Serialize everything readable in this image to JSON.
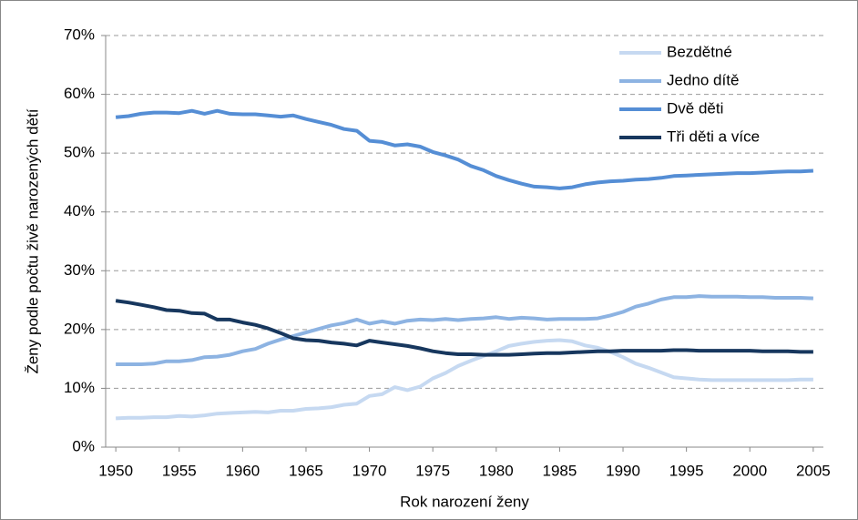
{
  "chart_data": {
    "type": "line",
    "x_label": "Rok narození ženy",
    "y_label": "Ženy podle počtu živě narozených dětí",
    "x": [
      1950,
      1951,
      1952,
      1953,
      1954,
      1955,
      1956,
      1957,
      1958,
      1959,
      1960,
      1961,
      1962,
      1963,
      1964,
      1965,
      1966,
      1967,
      1968,
      1969,
      1970,
      1971,
      1972,
      1973,
      1974,
      1975,
      1976,
      1977,
      1978,
      1979,
      1980,
      1981,
      1982,
      1983,
      1984,
      1985,
      1986,
      1987,
      1988,
      1989,
      1990,
      1991,
      1992,
      1993,
      1994,
      1995,
      1996,
      1997,
      1998,
      1999,
      2000,
      2001,
      2002,
      2003,
      2004,
      2005
    ],
    "series": [
      {
        "name": "Bezdětné",
        "color": "#c6d9f1",
        "values": [
          4.9,
          5.0,
          5.0,
          5.1,
          5.1,
          5.3,
          5.2,
          5.4,
          5.7,
          5.8,
          5.9,
          6.0,
          5.9,
          6.2,
          6.2,
          6.5,
          6.6,
          6.8,
          7.2,
          7.4,
          8.7,
          9.0,
          10.2,
          9.7,
          10.3,
          11.7,
          12.6,
          13.8,
          14.7,
          15.5,
          16.3,
          17.2,
          17.6,
          17.9,
          18.1,
          18.2,
          18.0,
          17.3,
          16.9,
          16.2,
          15.3,
          14.2,
          13.5,
          12.7,
          11.9,
          11.7,
          11.5,
          11.4,
          11.4,
          11.4,
          11.4,
          11.4,
          11.4,
          11.4,
          11.5,
          11.5
        ]
      },
      {
        "name": "Jedno dítě",
        "color": "#8db3e2",
        "values": [
          14.1,
          14.1,
          14.1,
          14.2,
          14.6,
          14.6,
          14.8,
          15.3,
          15.4,
          15.7,
          16.3,
          16.7,
          17.6,
          18.3,
          18.9,
          19.5,
          20.1,
          20.7,
          21.1,
          21.7,
          21.0,
          21.4,
          21.0,
          21.5,
          21.7,
          21.6,
          21.8,
          21.6,
          21.8,
          21.9,
          22.1,
          21.8,
          22.0,
          21.9,
          21.7,
          21.8,
          21.8,
          21.8,
          21.9,
          22.4,
          23.0,
          23.9,
          24.4,
          25.1,
          25.5,
          25.5,
          25.7,
          25.6,
          25.6,
          25.6,
          25.5,
          25.5,
          25.4,
          25.4,
          25.4,
          25.3
        ]
      },
      {
        "name": "Dvě děti",
        "color": "#558ed5",
        "values": [
          56.1,
          56.3,
          56.7,
          56.9,
          56.9,
          56.8,
          57.2,
          56.7,
          57.2,
          56.7,
          56.6,
          56.6,
          56.4,
          56.2,
          56.4,
          55.8,
          55.3,
          54.8,
          54.1,
          53.8,
          52.1,
          51.9,
          51.3,
          51.5,
          51.1,
          50.2,
          49.6,
          48.9,
          47.8,
          47.1,
          46.1,
          45.4,
          44.8,
          44.3,
          44.2,
          44.0,
          44.2,
          44.7,
          45.0,
          45.2,
          45.3,
          45.5,
          45.6,
          45.8,
          46.1,
          46.2,
          46.3,
          46.4,
          46.5,
          46.6,
          46.6,
          46.7,
          46.8,
          46.9,
          46.9,
          47.0
        ]
      },
      {
        "name": "Tři děti a více",
        "color": "#17375e",
        "values": [
          24.9,
          24.6,
          24.2,
          23.8,
          23.3,
          23.2,
          22.8,
          22.7,
          21.7,
          21.7,
          21.2,
          20.8,
          20.2,
          19.4,
          18.5,
          18.2,
          18.1,
          17.8,
          17.6,
          17.3,
          18.1,
          17.8,
          17.5,
          17.2,
          16.8,
          16.3,
          16.0,
          15.8,
          15.8,
          15.7,
          15.7,
          15.7,
          15.8,
          15.9,
          16.0,
          16.0,
          16.1,
          16.2,
          16.3,
          16.3,
          16.4,
          16.4,
          16.4,
          16.4,
          16.5,
          16.5,
          16.4,
          16.4,
          16.4,
          16.4,
          16.4,
          16.3,
          16.3,
          16.3,
          16.2,
          16.2
        ]
      }
    ],
    "xlim": [
      1949.2,
      2005.8
    ],
    "xticks": [
      1950,
      1955,
      1960,
      1965,
      1970,
      1975,
      1980,
      1985,
      1990,
      1995,
      2000,
      2005
    ],
    "ylim": [
      0,
      70
    ],
    "yticks": [
      {
        "value": 0,
        "label": "0%"
      },
      {
        "value": 10,
        "label": "10%"
      },
      {
        "value": 20,
        "label": "20%"
      },
      {
        "value": 30,
        "label": "30%"
      },
      {
        "value": 40,
        "label": "40%"
      },
      {
        "value": 50,
        "label": "50%"
      },
      {
        "value": 60,
        "label": "60%"
      },
      {
        "value": 70,
        "label": "70%"
      }
    ],
    "grid": true,
    "legend": "upper right"
  }
}
